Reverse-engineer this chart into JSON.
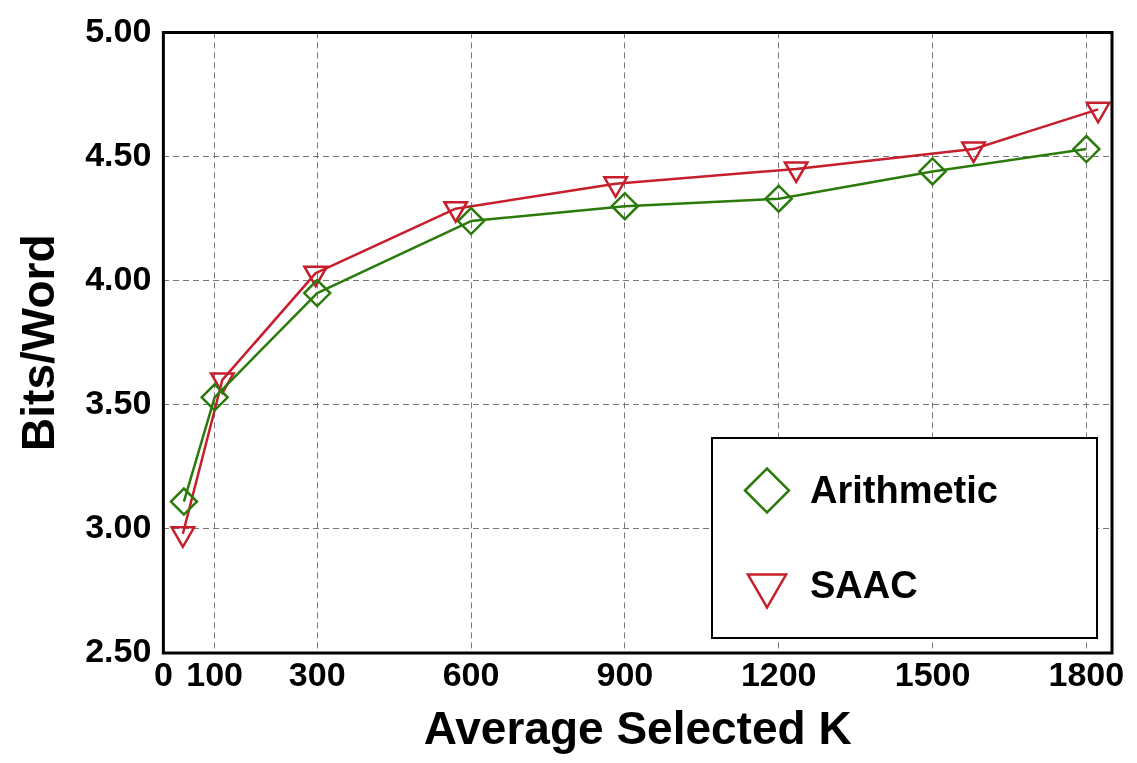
{
  "chart_data": {
    "type": "line",
    "xlabel": "Average Selected K",
    "ylabel": "Bits/Word",
    "xlim": [
      0,
      1850
    ],
    "xticks": [
      0,
      100,
      300,
      600,
      900,
      1200,
      1500,
      1800
    ],
    "ylim": [
      2.5,
      5
    ],
    "yticks": [
      {
        "value": 2.5,
        "label": "2.50"
      },
      {
        "value": 3,
        "label": "3.00"
      },
      {
        "value": 3.5,
        "label": "3.50"
      },
      {
        "value": 4,
        "label": "4.00"
      },
      {
        "value": 4.5,
        "label": "4.50"
      },
      {
        "value": 5,
        "label": "5.00"
      }
    ],
    "grid": true,
    "legend": "bottom right",
    "line_style": "solid",
    "series": [
      {
        "name": "Arithmetic",
        "color": "#2a7a0c",
        "marker": "diamond",
        "x": [
          40,
          100,
          300,
          600,
          900,
          1200,
          1500,
          1800
        ],
        "values": [
          3.11,
          3.53,
          3.95,
          4.24,
          4.3,
          4.33,
          4.44,
          4.53
        ]
      },
      {
        "name": "SAAC",
        "color": "#c61f2b",
        "marker": "triangle",
        "x": [
          38,
          115,
          297,
          570,
          882,
          1234,
          1580,
          1823
        ],
        "values": [
          2.98,
          3.6,
          4.03,
          4.29,
          4.39,
          4.45,
          4.53,
          4.69
        ]
      }
    ]
  }
}
